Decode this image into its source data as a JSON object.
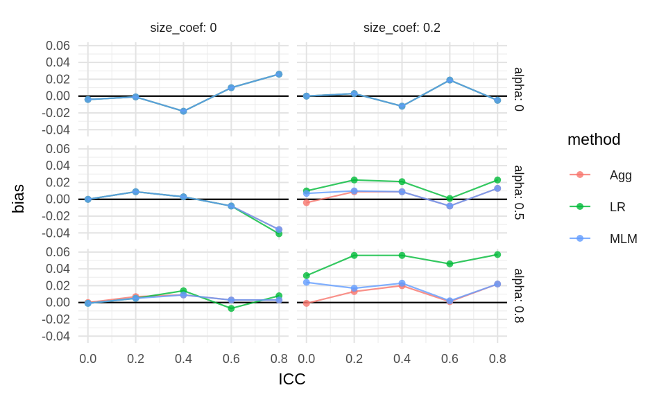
{
  "chart_data": {
    "type": "line",
    "xlabel": "ICC",
    "ylabel": "bias",
    "x": [
      0.0,
      0.2,
      0.4,
      0.6,
      0.8
    ],
    "x_tick_labels": [
      "0.0",
      "0.2",
      "0.4",
      "0.6",
      "0.8"
    ],
    "y_ticks": [
      -0.04,
      -0.02,
      0.0,
      0.02,
      0.04,
      0.06
    ],
    "y_tick_labels": [
      "-0.04",
      "-0.02",
      "0.00",
      "0.02",
      "0.04",
      "0.06"
    ],
    "ylim": [
      -0.048,
      0.064
    ],
    "xlim": [
      -0.04,
      0.84
    ],
    "reference_line": 0,
    "grid": true,
    "legend": {
      "title": "method",
      "position": "right",
      "entries": [
        {
          "name": "Agg",
          "color": "#F8766D"
        },
        {
          "name": "LR",
          "color": "#00BA38"
        },
        {
          "name": "MLM",
          "color": "#619CFF"
        }
      ]
    },
    "col_labels": [
      "size_coef: 0",
      "size_coef: 0.2"
    ],
    "row_labels": [
      "alpha: 0",
      "alpha: 0.5",
      "alpha: 0.8"
    ],
    "panels": [
      {
        "row": 0,
        "col": 0,
        "series": [
          {
            "name": "Agg",
            "values": [
              -0.004,
              -0.001,
              -0.018,
              0.01,
              0.026
            ]
          },
          {
            "name": "LR",
            "values": [
              -0.004,
              -0.001,
              -0.018,
              0.01,
              0.026
            ]
          },
          {
            "name": "MLM",
            "values": [
              -0.004,
              -0.001,
              -0.018,
              0.01,
              0.026
            ]
          }
        ]
      },
      {
        "row": 0,
        "col": 1,
        "series": [
          {
            "name": "Agg",
            "values": [
              0.0,
              0.003,
              -0.012,
              0.019,
              -0.005
            ]
          },
          {
            "name": "LR",
            "values": [
              0.0,
              0.003,
              -0.012,
              0.019,
              -0.005
            ]
          },
          {
            "name": "MLM",
            "values": [
              0.0,
              0.003,
              -0.012,
              0.019,
              -0.005
            ]
          }
        ]
      },
      {
        "row": 1,
        "col": 0,
        "series": [
          {
            "name": "Agg",
            "values": [
              0.0,
              0.009,
              0.003,
              -0.008,
              -0.036
            ]
          },
          {
            "name": "LR",
            "values": [
              0.0,
              0.009,
              0.003,
              -0.008,
              -0.041
            ]
          },
          {
            "name": "MLM",
            "values": [
              0.0,
              0.009,
              0.003,
              -0.008,
              -0.036
            ]
          }
        ]
      },
      {
        "row": 1,
        "col": 1,
        "series": [
          {
            "name": "Agg",
            "values": [
              -0.004,
              0.009,
              0.009,
              -0.008,
              0.013
            ]
          },
          {
            "name": "LR",
            "values": [
              0.01,
              0.023,
              0.021,
              0.001,
              0.023
            ]
          },
          {
            "name": "MLM",
            "values": [
              0.007,
              0.01,
              0.009,
              -0.008,
              0.013
            ]
          }
        ]
      },
      {
        "row": 2,
        "col": 0,
        "series": [
          {
            "name": "Agg",
            "values": [
              0.0,
              0.007,
              0.009,
              0.003,
              0.003
            ]
          },
          {
            "name": "LR",
            "values": [
              -0.001,
              0.005,
              0.014,
              -0.007,
              0.008
            ]
          },
          {
            "name": "MLM",
            "values": [
              -0.001,
              0.005,
              0.009,
              0.003,
              0.003
            ]
          }
        ]
      },
      {
        "row": 2,
        "col": 1,
        "series": [
          {
            "name": "Agg",
            "values": [
              -0.001,
              0.013,
              0.02,
              0.001,
              0.022
            ]
          },
          {
            "name": "LR",
            "values": [
              0.032,
              0.056,
              0.056,
              0.046,
              0.057
            ]
          },
          {
            "name": "MLM",
            "values": [
              0.024,
              0.017,
              0.023,
              0.002,
              0.022
            ]
          }
        ]
      }
    ]
  }
}
